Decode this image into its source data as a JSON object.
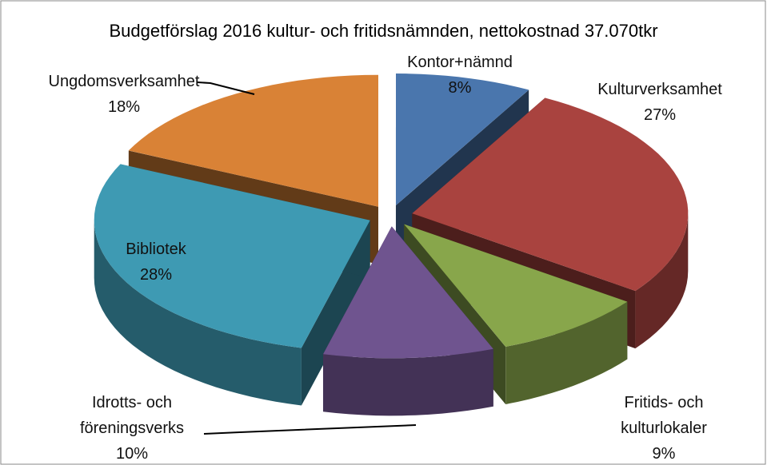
{
  "chart_data": {
    "type": "pie3d",
    "title": "Budgetförslag 2016 kultur- och fritidsnämnden, nettokostnad 37.070tkr",
    "categories": [
      "Kontor+nämnd",
      "Kulturverksamhet",
      "Fritids- och kulturlokaler",
      "Idrotts- och föreningsverks",
      "Bibliotek",
      "Ungdomsverksamhet"
    ],
    "values": [
      8,
      27,
      9,
      10,
      28,
      18
    ],
    "value_labels": [
      "8%",
      "27%",
      "9%",
      "10%",
      "28%",
      "18%"
    ],
    "colors": [
      "#4a76ad",
      "#a9433f",
      "#88a64b",
      "#6f548f",
      "#3e9ab3",
      "#d98236"
    ],
    "exploded": true
  }
}
